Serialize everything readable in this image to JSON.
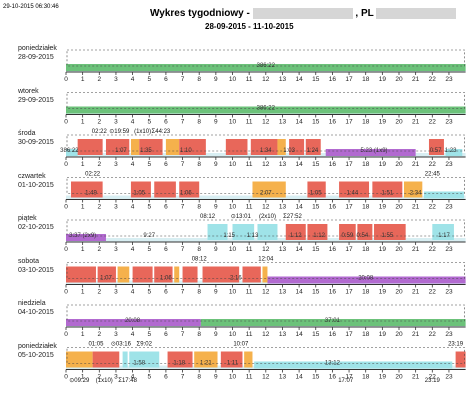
{
  "header": {
    "timestamp": "29-10-2015 06:30:46",
    "title_prefix": "Wykres tygodniowy -",
    "title_suffix": ", PL",
    "date_range": "28-09-2015 - 11-10-2015"
  },
  "colors": {
    "driving": "#e8675a",
    "work": "#f5b14c",
    "availability": "#9fe3e8",
    "rest": "#b26ad0",
    "idle": "#6cc27a",
    "axis": "#333333"
  },
  "hours": [
    "0",
    "1",
    "2",
    "3",
    "4",
    "5",
    "6",
    "7",
    "8",
    "9",
    "10",
    "11",
    "12",
    "13",
    "14",
    "15",
    "16",
    "17",
    "18",
    "19",
    "20",
    "21",
    "22",
    "23"
  ],
  "days": [
    {
      "name": "poniedziałek",
      "date": "28-09-2015",
      "labels": [
        {
          "t": "386:22",
          "h": 12.0
        }
      ],
      "top": []
    },
    {
      "name": "wtorek",
      "date": "29-09-2015",
      "labels": [
        {
          "t": "386:22",
          "h": 12.0
        }
      ],
      "top": []
    },
    {
      "name": "środa",
      "date": "30-09-2015",
      "labels": [
        {
          "t": "386:22",
          "h": 0.2
        },
        {
          "t": "1:07",
          "h": 3.3
        },
        {
          "t": "1:35",
          "h": 4.8
        },
        {
          "t": "1:10",
          "h": 7.2
        },
        {
          "t": "1:34",
          "h": 12.0
        },
        {
          "t": "1:03",
          "h": 13.4
        },
        {
          "t": "1:24",
          "h": 14.8
        },
        {
          "t": "5:23 (1x9)",
          "h": 18.5
        },
        {
          "t": "0:57",
          "h": 22.2
        },
        {
          "t": "1:23",
          "h": 23.1
        }
      ],
      "top": [
        {
          "t": "02:22",
          "h": 2.0
        },
        {
          "t": "⊙19:59",
          "h": 3.2
        },
        {
          "t": "(1x10)",
          "h": 4.6
        },
        {
          "t": "Σ44:23",
          "h": 5.7
        }
      ]
    },
    {
      "name": "czwartek",
      "date": "01-10-2015",
      "labels": [
        {
          "t": "1:49",
          "h": 1.5
        },
        {
          "t": "1:05",
          "h": 4.4
        },
        {
          "t": "1:06",
          "h": 7.2
        },
        {
          "t": "2:07",
          "h": 12.0
        },
        {
          "t": "1:05",
          "h": 15.0
        },
        {
          "t": "1:44",
          "h": 17.2
        },
        {
          "t": "1:51",
          "h": 19.3
        },
        {
          "t": "2:34",
          "h": 21.0
        }
      ],
      "top": [
        {
          "t": "02:22",
          "h": 1.6
        },
        {
          "t": "22:45",
          "h": 22.0
        }
      ]
    },
    {
      "name": "piątek",
      "date": "02-10-2015",
      "labels": [
        {
          "t": "3:37 (2x9)",
          "h": 1.0
        },
        {
          "t": "9:27",
          "h": 5.0
        },
        {
          "t": "1:15",
          "h": 9.8
        },
        {
          "t": "1:13",
          "h": 11.2
        },
        {
          "t": "1:12",
          "h": 13.8
        },
        {
          "t": "1:12",
          "h": 15.2
        },
        {
          "t": "0:59",
          "h": 16.9
        },
        {
          "t": "0:54",
          "h": 17.8
        },
        {
          "t": "1:55",
          "h": 19.3
        },
        {
          "t": "1:17",
          "h": 22.7
        }
      ],
      "top": [
        {
          "t": "08:12",
          "h": 8.5
        },
        {
          "t": "⊙13:01",
          "h": 10.5
        },
        {
          "t": "(2x10)",
          "h": 12.1
        },
        {
          "t": "Σ27:52",
          "h": 13.6
        }
      ]
    },
    {
      "name": "sobota",
      "date": "03-10-2015",
      "labels": [
        {
          "t": "1:07",
          "h": 2.4
        },
        {
          "t": "1:06",
          "h": 6.0
        },
        {
          "t": "2:16",
          "h": 10.2
        },
        {
          "t": "20:08",
          "h": 18.0
        }
      ],
      "top": [
        {
          "t": "08:12",
          "h": 8.0
        },
        {
          "t": "12:04",
          "h": 12.0
        }
      ]
    },
    {
      "name": "niedziela",
      "date": "04-10-2015",
      "labels": [
        {
          "t": "20:08",
          "h": 4.0
        },
        {
          "t": "37:01",
          "h": 16.0
        }
      ],
      "top": []
    },
    {
      "name": "poniedziałek",
      "date": "05-10-2015",
      "labels": [
        {
          "t": "1:58",
          "h": 4.4
        },
        {
          "t": "1:18",
          "h": 6.8
        },
        {
          "t": "1:21",
          "h": 8.4
        },
        {
          "t": "1:11",
          "h": 10.0
        },
        {
          "t": "13:12",
          "h": 16.0
        }
      ],
      "top": [
        {
          "t": "01:05",
          "h": 1.8
        },
        {
          "t": "⊙03:16",
          "h": 3.3
        },
        {
          "t": "Σ9:02",
          "h": 4.7
        },
        {
          "t": "10:07",
          "h": 10.5
        },
        {
          "t": "23:19",
          "h": 23.4
        }
      ]
    }
  ],
  "footer": [
    {
      "t": "⊙09:29",
      "h": 0.8
    },
    {
      "t": "(1x10)",
      "h": 2.3
    },
    {
      "t": "Σ17:48",
      "h": 3.7
    },
    {
      "t": "17:07",
      "h": 16.8
    },
    {
      "t": "23:19",
      "h": 22.0
    }
  ]
}
